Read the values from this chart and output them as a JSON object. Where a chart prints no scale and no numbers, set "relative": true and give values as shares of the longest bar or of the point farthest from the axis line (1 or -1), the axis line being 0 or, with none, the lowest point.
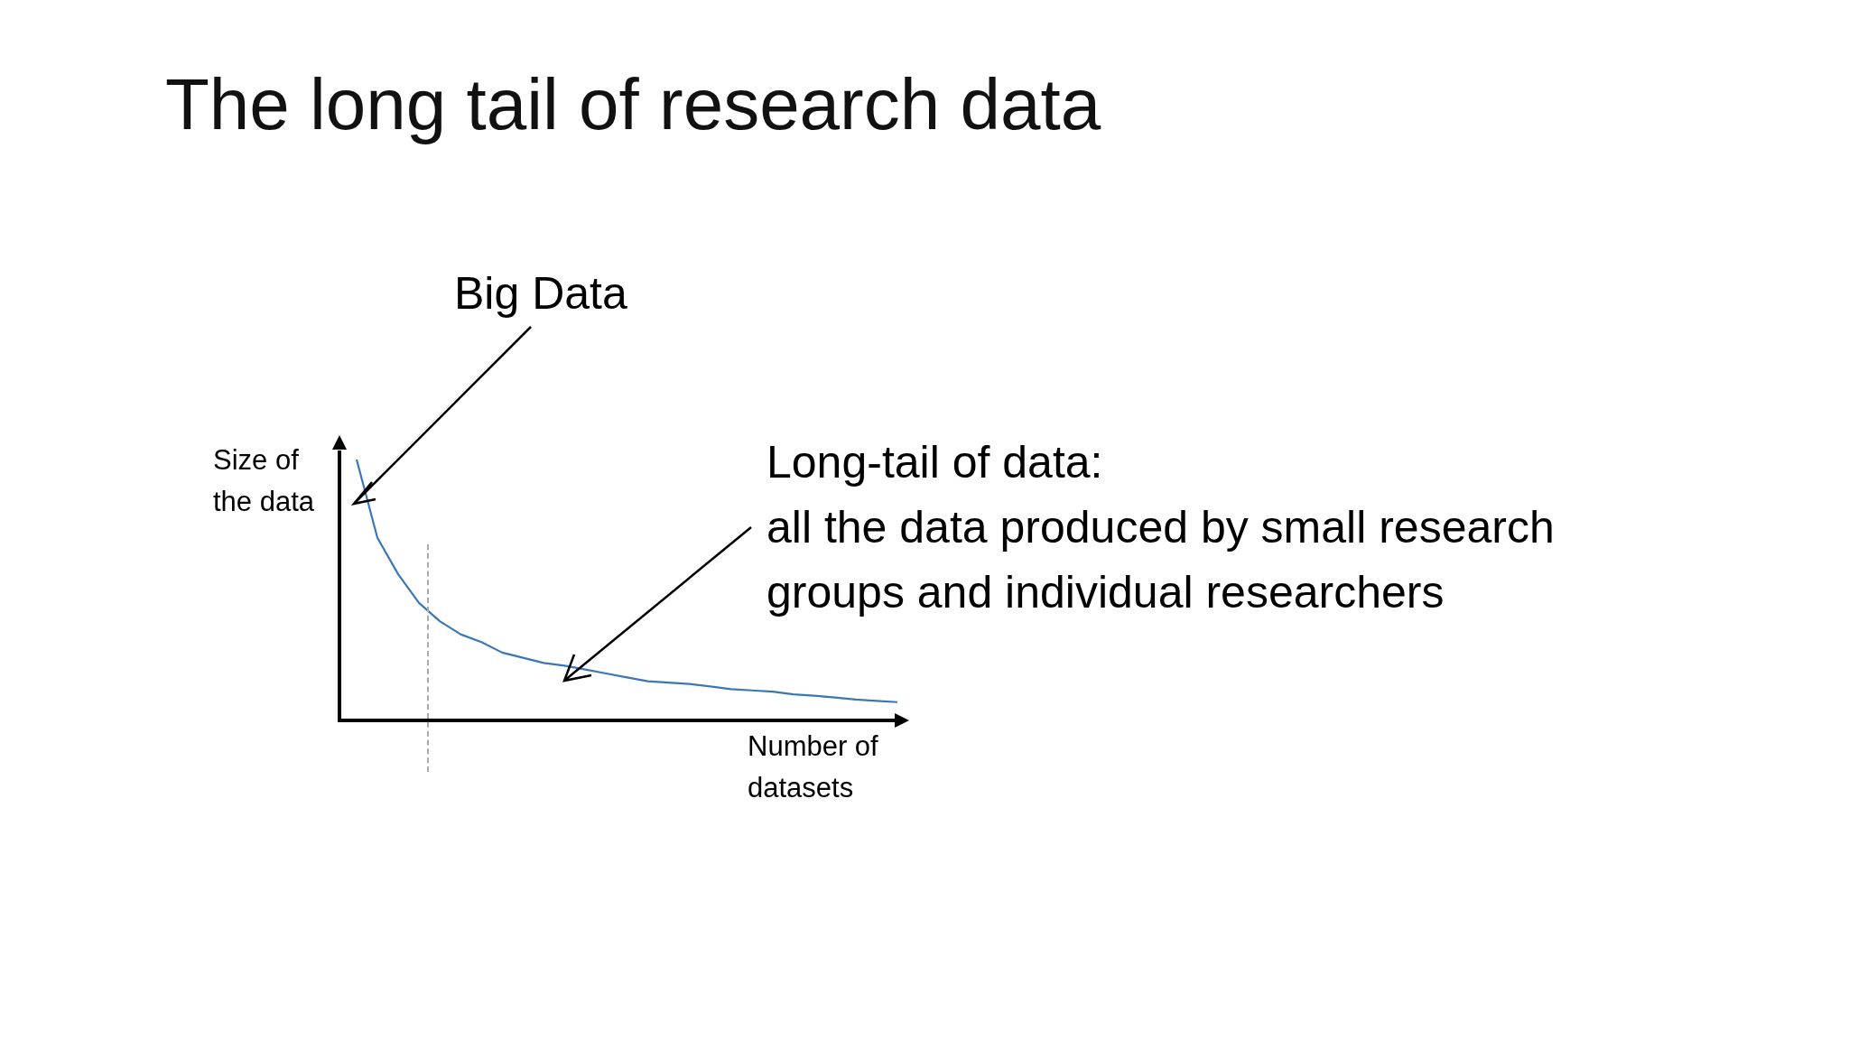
{
  "chart_data": {
    "type": "line",
    "title": "The long tail of research data",
    "xlabel": "Number of\ndatasets",
    "ylabel": "Size of\nthe data",
    "relative": true,
    "tick_labels": false,
    "legend": false,
    "marker": "none",
    "categories": [
      null,
      null,
      null,
      null,
      null,
      null,
      null,
      null,
      null,
      null,
      null,
      null,
      null,
      null,
      null,
      null,
      null,
      null,
      null,
      null,
      null,
      null,
      null,
      null,
      null,
      null,
      null
    ],
    "series": [
      {
        "color": "#3a78b5",
        "values": [
          1,
          0.7,
          0.56,
          0.45,
          0.38,
          0.33,
          0.3,
          0.26,
          0.24,
          0.22,
          0.21,
          0.195,
          0.18,
          0.165,
          0.15,
          0.145,
          0.14,
          0.13,
          0.12,
          0.115,
          0.11,
          0.1,
          0.095,
          0.088,
          0.08,
          0.075,
          0.07
        ]
      }
    ],
    "annotations": [
      "Big Data",
      "Long-tail of data:\nall the data produced by small research\ngroups and individual researchers"
    ]
  }
}
